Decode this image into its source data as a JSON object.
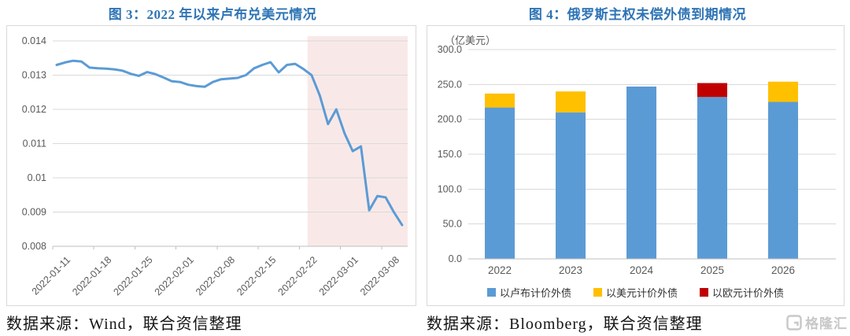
{
  "panels": {
    "left": {
      "title": "图 3：2022 年以来卢布兑美元情况",
      "source": "数据来源：Wind，联合资信整理"
    },
    "right": {
      "title": "图 4：俄罗斯主权未偿外债到期情况",
      "source": "数据来源：Bloomberg，联合资信整理"
    }
  },
  "watermark": {
    "text": "格隆汇"
  },
  "colors": {
    "title": "#2E74B5",
    "grid": "#D9D9D9",
    "axis": "#BFBFBF",
    "tick_text": "#595959",
    "watermark": "#C8C8C8"
  },
  "chart_data": [
    {
      "type": "line",
      "title": "图 3：2022 年以来卢布兑美元情况",
      "ylabel": "",
      "xlabel": "",
      "ylim": [
        0.008,
        0.014
      ],
      "y_ticks": [
        "0.014",
        "0.013",
        "0.012",
        "0.011",
        "0.01",
        "0.009",
        "0.008"
      ],
      "x_tick_labels": [
        "2022-01-11",
        "2022-01-18",
        "2022-01-25",
        "2022-02-01",
        "2022-02-08",
        "2022-02-15",
        "2022-02-22",
        "2022-03-01",
        "2022-03-08"
      ],
      "dates": [
        "2022-01-11",
        "2022-01-12",
        "2022-01-13",
        "2022-01-14",
        "2022-01-17",
        "2022-01-18",
        "2022-01-19",
        "2022-01-20",
        "2022-01-21",
        "2022-01-24",
        "2022-01-25",
        "2022-01-26",
        "2022-01-27",
        "2022-01-28",
        "2022-01-31",
        "2022-02-01",
        "2022-02-02",
        "2022-02-03",
        "2022-02-04",
        "2022-02-07",
        "2022-02-08",
        "2022-02-09",
        "2022-02-10",
        "2022-02-11",
        "2022-02-14",
        "2022-02-15",
        "2022-02-16",
        "2022-02-17",
        "2022-02-18",
        "2022-02-21",
        "2022-02-22",
        "2022-02-23",
        "2022-02-24",
        "2022-02-25",
        "2022-02-28",
        "2022-03-01",
        "2022-03-02",
        "2022-03-03",
        "2022-03-04",
        "2022-03-07",
        "2022-03-08",
        "2022-03-09",
        "2022-03-10"
      ],
      "values": [
        0.0133,
        0.01337,
        0.01342,
        0.0134,
        0.01322,
        0.0132,
        0.01319,
        0.01317,
        0.01313,
        0.01304,
        0.01298,
        0.01309,
        0.01303,
        0.01293,
        0.01282,
        0.0128,
        0.01272,
        0.01268,
        0.01266,
        0.0128,
        0.01288,
        0.0129,
        0.01292,
        0.013,
        0.0132,
        0.0133,
        0.01338,
        0.01308,
        0.0133,
        0.01333,
        0.01318,
        0.013,
        0.0124,
        0.01157,
        0.012,
        0.0113,
        0.01078,
        0.01092,
        0.00905,
        0.00947,
        0.00943,
        0.009,
        0.00862
      ],
      "line_color": "#5B9BD5",
      "highlight_region": {
        "from_date": "2022-02-23",
        "to": "end",
        "color": "#F8E9E8"
      },
      "grid": true,
      "legend_position": "none"
    },
    {
      "type": "bar",
      "stacked": true,
      "title": "图 4：俄罗斯主权未偿外债到期情况",
      "ylabel": "（亿美元）",
      "xlabel": "",
      "categories": [
        "2022",
        "2023",
        "2024",
        "2025",
        "2026"
      ],
      "series": [
        {
          "name": "以卢布计价外债",
          "color": "#5B9BD5",
          "values": [
            217,
            210,
            247,
            232,
            225
          ]
        },
        {
          "name": "以美元计价外债",
          "color": "#FFC000",
          "values": [
            20,
            30,
            0,
            0,
            29
          ]
        },
        {
          "name": "以欧元计价外债",
          "color": "#C00000",
          "values": [
            0,
            0,
            0,
            20,
            0
          ]
        }
      ],
      "totals": [
        237,
        240,
        247,
        252,
        254
      ],
      "ylim": [
        0,
        300
      ],
      "y_ticks": [
        "300.0",
        "250.0",
        "200.0",
        "150.0",
        "100.0",
        "50.0",
        "0.0"
      ],
      "grid": true,
      "legend_position": "bottom"
    }
  ]
}
